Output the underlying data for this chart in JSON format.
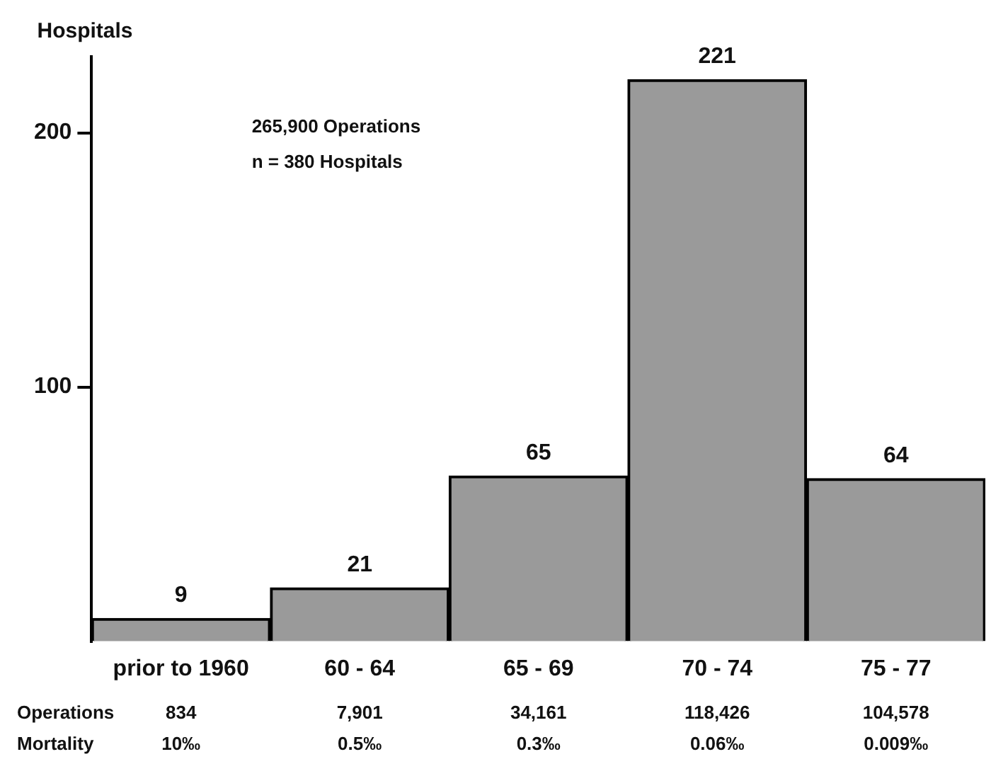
{
  "chart_data": {
    "type": "bar",
    "ylabel": "Hospitals",
    "categories": [
      "prior to 1960",
      "60 - 64",
      "65 - 69",
      "70 - 74",
      "75 - 77"
    ],
    "values": [
      9,
      21,
      65,
      221,
      64
    ],
    "color": "#9a9a9a",
    "ylim": [
      0,
      230
    ],
    "yticks": [
      100,
      200
    ],
    "grid": false,
    "legend": false,
    "data_labels": true,
    "annotations": [
      "265,900 Operations",
      "n = 380 Hospitals",
      "Operations",
      "834",
      "7,901",
      "34,161",
      "118,426",
      "104,578",
      "Mortality",
      "10‰",
      "0.5‰",
      "0.3‰",
      "0.06‰",
      "0.009‰"
    ]
  }
}
